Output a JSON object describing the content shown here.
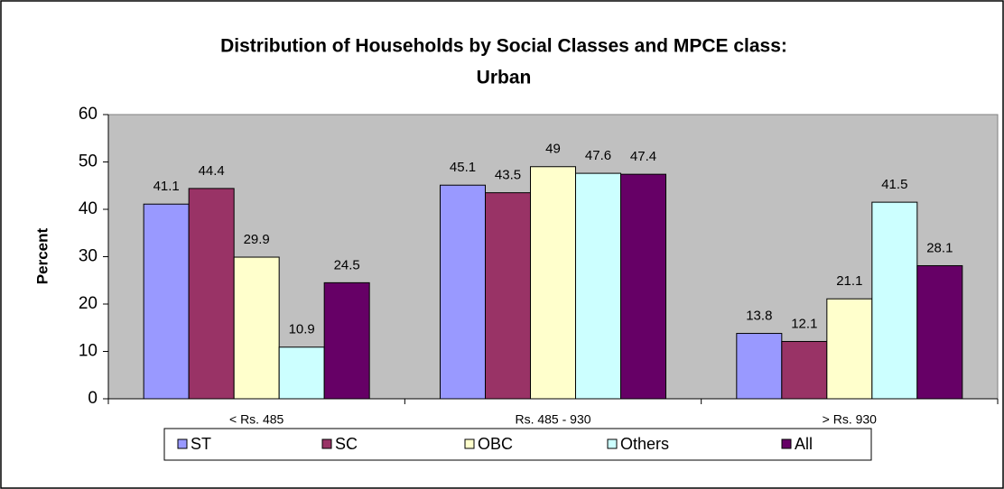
{
  "chart_data": {
    "type": "bar",
    "title": [
      "Distribution of Households by Social Classes and MPCE class:",
      "Urban"
    ],
    "y_label": "Percent",
    "categories": [
      "< Rs. 485",
      "Rs. 485 - 930",
      "> Rs. 930"
    ],
    "series": [
      {
        "name": "ST",
        "color": "#9999ff",
        "values": [
          41.1,
          45.1,
          13.8
        ]
      },
      {
        "name": "SC",
        "color": "#993366",
        "values": [
          44.4,
          43.5,
          12.1
        ]
      },
      {
        "name": "OBC",
        "color": "#ffffcc",
        "values": [
          29.9,
          49,
          21.1
        ]
      },
      {
        "name": "Others",
        "color": "#ccffff",
        "values": [
          10.9,
          47.6,
          41.5
        ]
      },
      {
        "name": "All",
        "color": "#660066",
        "values": [
          24.5,
          47.4,
          28.1
        ]
      }
    ],
    "ylim": [
      0,
      60
    ],
    "yticks": [
      0,
      10,
      20,
      30,
      40,
      50,
      60
    ],
    "grid": false,
    "legend": "bottom"
  }
}
